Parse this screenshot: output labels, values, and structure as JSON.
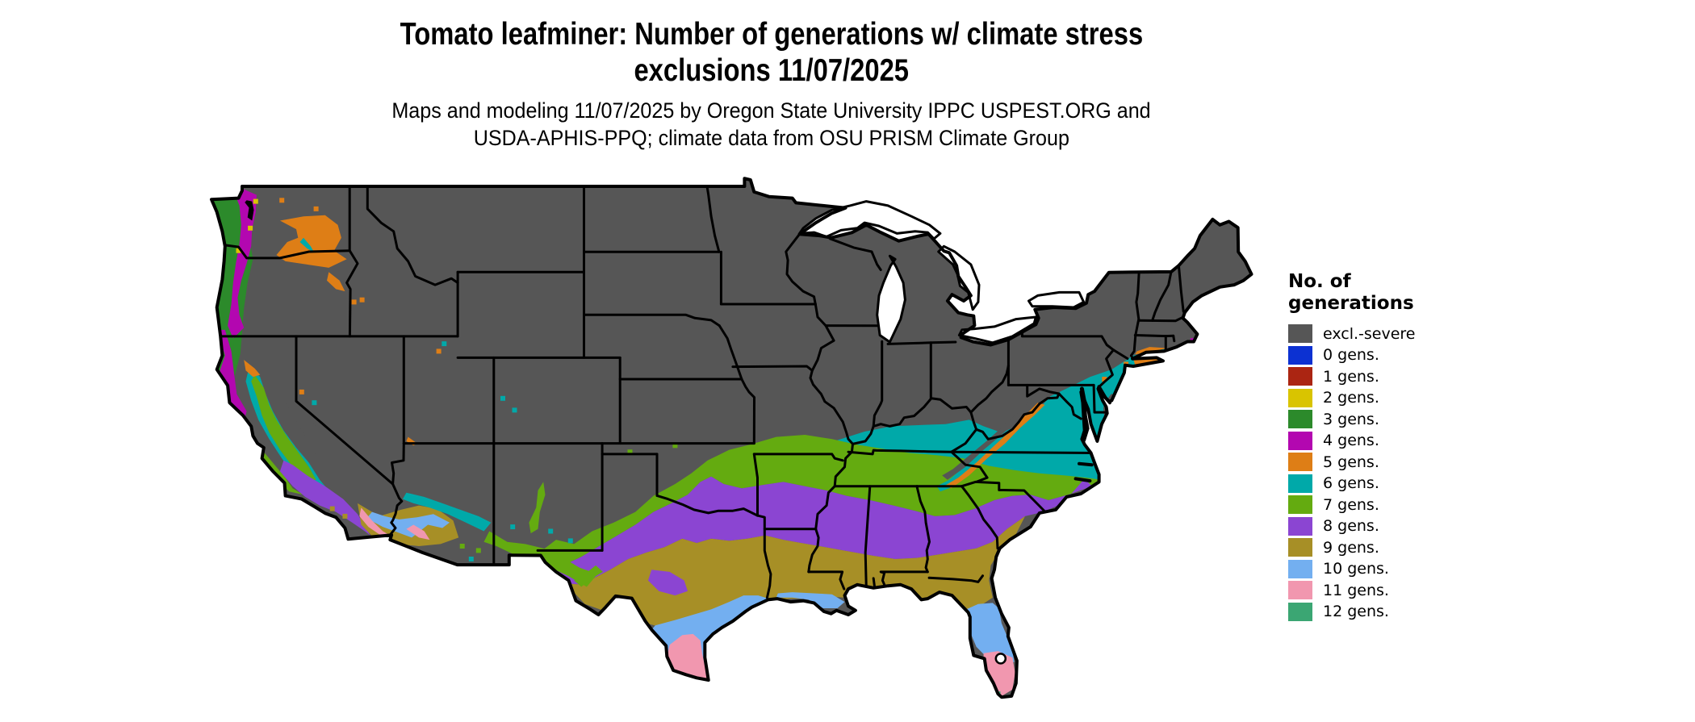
{
  "title": {
    "line1": "Tomato leafminer: Number of generations w/ climate stress",
    "line2": "exclusions 11/07/2025"
  },
  "subtitle": {
    "line1": "Maps and modeling 11/07/2025 by Oregon State University IPPC USPEST.ORG and",
    "line2": "USDA-APHIS-PPQ; climate data from OSU PRISM Climate Group"
  },
  "legend": {
    "title_line1": "No. of",
    "title_line2": "generations",
    "items": [
      {
        "label": "excl.-severe",
        "palette_key": "excl_severe"
      },
      {
        "label": "0 gens.",
        "palette_key": "gens_0"
      },
      {
        "label": "1 gens.",
        "palette_key": "gens_1"
      },
      {
        "label": "2 gens.",
        "palette_key": "gens_2"
      },
      {
        "label": "3 gens.",
        "palette_key": "gens_3"
      },
      {
        "label": "4 gens.",
        "palette_key": "gens_4"
      },
      {
        "label": "5 gens.",
        "palette_key": "gens_5"
      },
      {
        "label": "6 gens.",
        "palette_key": "gens_6"
      },
      {
        "label": "7 gens.",
        "palette_key": "gens_7"
      },
      {
        "label": "8 gens.",
        "palette_key": "gens_8"
      },
      {
        "label": "9 gens.",
        "palette_key": "gens_9"
      },
      {
        "label": "10 gens.",
        "palette_key": "gens_10"
      },
      {
        "label": "11 gens.",
        "palette_key": "gens_11"
      },
      {
        "label": "12 gens.",
        "palette_key": "gens_12"
      }
    ]
  },
  "palette": {
    "excl_severe": "#565656",
    "gens_0": "#0c31d2",
    "gens_1": "#ab2512",
    "gens_2": "#d9c400",
    "gens_3": "#2c8a2b",
    "gens_4": "#b307b0",
    "gens_5": "#de7e16",
    "gens_6": "#00a9a9",
    "gens_7": "#64ab10",
    "gens_8": "#8b45d2",
    "gens_9": "#a78f26",
    "gens_10": "#73aff0",
    "gens_11": "#f197af",
    "gens_12": "#3ba673",
    "border": "#000000",
    "water": "#ffffff"
  }
}
